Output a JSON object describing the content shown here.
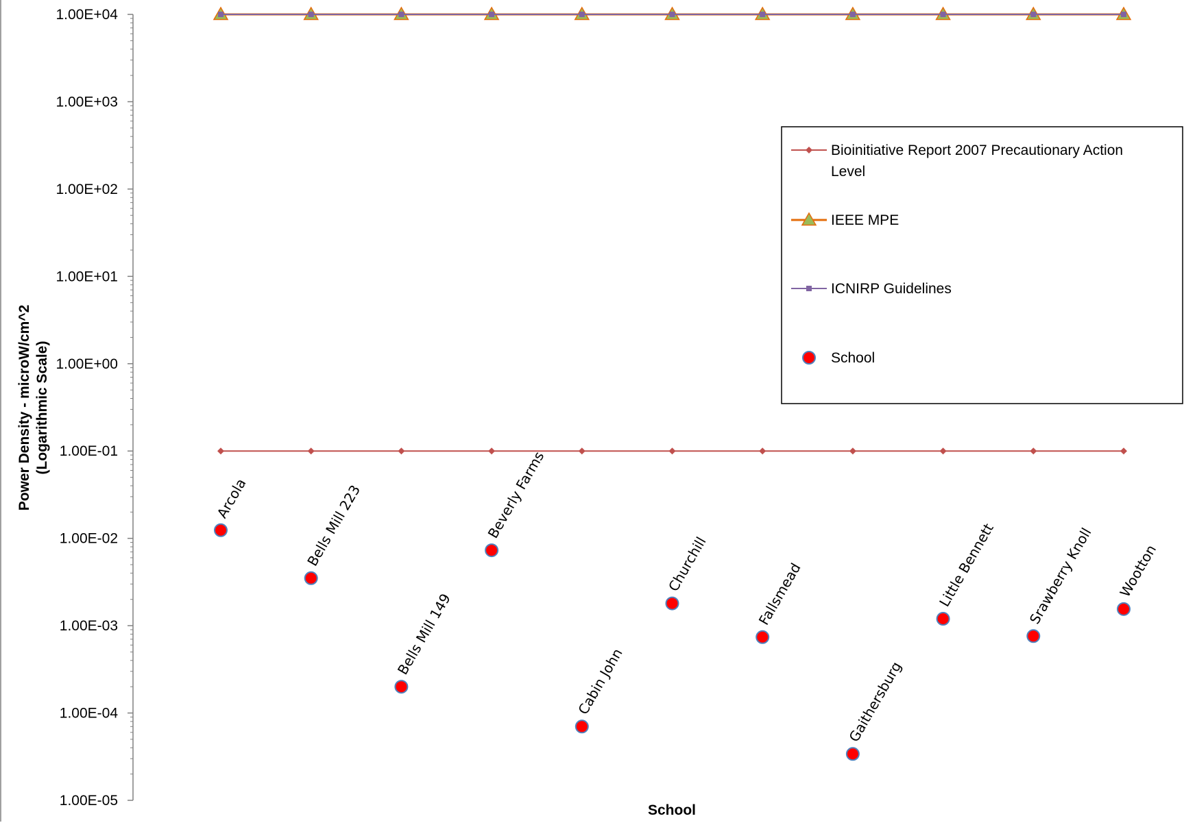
{
  "chart_data": {
    "type": "line",
    "xlabel": "School",
    "ylabel": "Power Density - microW/cm^2 (Logarithmic Scale)",
    "ylim": [
      1e-05,
      10000
    ],
    "y_scale": "log",
    "y_ticks": [
      "1.00E+04",
      "1.00E+03",
      "1.00E+02",
      "1.00E+01",
      "1.00E+00",
      "1.00E-01",
      "1.00E-02",
      "1.00E-03",
      "1.00E-04",
      "1.00E-05"
    ],
    "legend_position": "right",
    "grid": false,
    "categories": [
      "Arcola",
      "Bells Mill  223",
      "Bells Mill  149",
      "Beverly Farms",
      "Cabin John",
      "Churchill",
      "Fallsmead",
      "Gaithersburg",
      "Little Bennett",
      "Srawberry Knoll",
      "Wootton"
    ],
    "series": [
      {
        "name": "Bioinitiative Report 2007 Precautionary Action Level",
        "legend_lines": [
          "Bioinitiative Report 2007 Precautionary Action",
          "Level"
        ],
        "color": "#C0504D",
        "marker": "diamond",
        "values": [
          0.1,
          0.1,
          0.1,
          0.1,
          0.1,
          0.1,
          0.1,
          0.1,
          0.1,
          0.1,
          0.1
        ]
      },
      {
        "name": "IEEE MPE",
        "legend_lines": [
          "IEEE MPE"
        ],
        "color": "#E46C0A",
        "marker_fill": "#9BBB59",
        "marker": "triangle",
        "values": [
          10000,
          10000,
          10000,
          10000,
          10000,
          10000,
          10000,
          10000,
          10000,
          10000,
          10000
        ]
      },
      {
        "name": "ICNIRP Guidelines",
        "legend_lines": [
          "ICNIRP Guidelines"
        ],
        "color": "#8064A2",
        "marker": "square",
        "values": [
          10000,
          10000,
          10000,
          10000,
          10000,
          10000,
          10000,
          10000,
          10000,
          10000,
          10000
        ]
      },
      {
        "name": "School",
        "legend_lines": [
          "School"
        ],
        "color": "#FF0000",
        "marker_stroke": "#4F81BD",
        "marker": "circle",
        "line": false,
        "values": [
          0.0124,
          0.0035,
          0.0002,
          0.0073,
          7e-05,
          0.0018,
          0.00074,
          3.4e-05,
          0.0012,
          0.00076,
          0.00155
        ]
      }
    ]
  }
}
